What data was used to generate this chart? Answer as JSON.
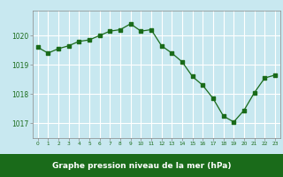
{
  "x": [
    0,
    1,
    2,
    3,
    4,
    5,
    6,
    7,
    8,
    9,
    10,
    11,
    12,
    13,
    14,
    15,
    16,
    17,
    18,
    19,
    20,
    21,
    22,
    23
  ],
  "y": [
    1019.6,
    1019.4,
    1019.55,
    1019.65,
    1019.8,
    1019.85,
    1020.0,
    1020.15,
    1020.2,
    1020.4,
    1020.15,
    1020.2,
    1019.65,
    1019.4,
    1019.1,
    1018.6,
    1018.3,
    1017.85,
    1017.25,
    1017.05,
    1017.45,
    1018.05,
    1018.55,
    1018.65
  ],
  "line_color": "#1a6b1a",
  "marker_color": "#1a6b1a",
  "bg_color": "#c8e8f0",
  "grid_color": "#ffffff",
  "xlabel": "Graphe pression niveau de la mer (hPa)",
  "xlabel_color": "#ffffff",
  "tick_color": "#1a6b1a",
  "ylim": [
    1016.5,
    1020.85
  ],
  "yticks": [
    1017,
    1018,
    1019,
    1020
  ],
  "xticks": [
    0,
    1,
    2,
    3,
    4,
    5,
    6,
    7,
    8,
    9,
    10,
    11,
    12,
    13,
    14,
    15,
    16,
    17,
    18,
    19,
    20,
    21,
    22,
    23
  ],
  "bottom_bar_color": "#1a6b1a",
  "spine_color": "#888888"
}
